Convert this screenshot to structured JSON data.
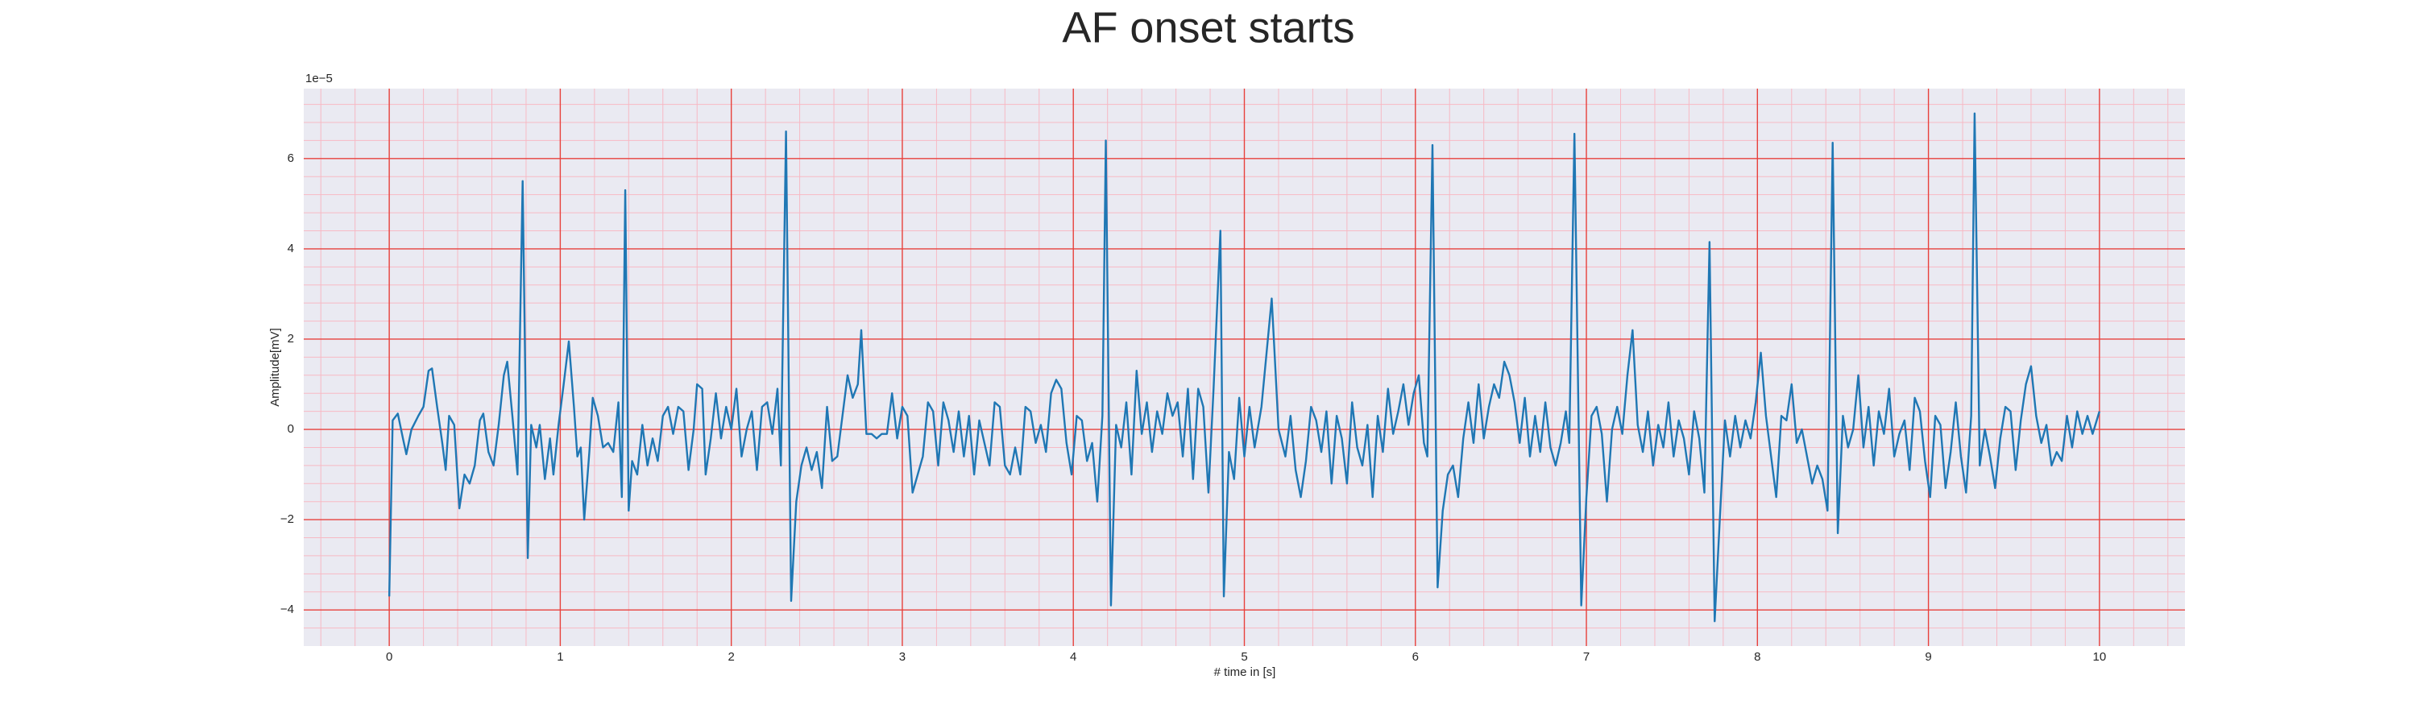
{
  "chart_data": {
    "type": "line",
    "title": "AF onset starts",
    "xlabel": "# time in [s]",
    "ylabel": "Amplitude[mV]",
    "offset_text": "1e−5",
    "x": [
      0,
      0.02,
      0.05,
      0.08,
      0.1,
      0.13,
      0.17,
      0.2,
      0.23,
      0.25,
      0.28,
      0.31,
      0.33,
      0.35,
      0.38,
      0.41,
      0.44,
      0.47,
      0.5,
      0.53,
      0.55,
      0.58,
      0.61,
      0.64,
      0.67,
      0.69,
      0.72,
      0.75,
      0.78,
      0.81,
      0.83,
      0.86,
      0.88,
      0.91,
      0.94,
      0.96,
      0.99,
      1.02,
      1.05,
      1.08,
      1.1,
      1.12,
      1.14,
      1.17,
      1.19,
      1.22,
      1.25,
      1.28,
      1.31,
      1.34,
      1.36,
      1.38,
      1.4,
      1.42,
      1.45,
      1.48,
      1.51,
      1.54,
      1.57,
      1.6,
      1.63,
      1.66,
      1.69,
      1.72,
      1.75,
      1.78,
      1.8,
      1.83,
      1.85,
      1.88,
      1.91,
      1.94,
      1.97,
      2.0,
      2.03,
      2.06,
      2.09,
      2.12,
      2.15,
      2.18,
      2.21,
      2.24,
      2.27,
      2.29,
      2.32,
      2.35,
      2.38,
      2.41,
      2.44,
      2.47,
      2.5,
      2.53,
      2.56,
      2.59,
      2.62,
      2.65,
      2.68,
      2.71,
      2.74,
      2.76,
      2.79,
      2.82,
      2.85,
      2.88,
      2.91,
      2.94,
      2.97,
      3.0,
      3.03,
      3.06,
      3.09,
      3.12,
      3.15,
      3.18,
      3.21,
      3.24,
      3.27,
      3.3,
      3.33,
      3.36,
      3.39,
      3.42,
      3.45,
      3.48,
      3.51,
      3.54,
      3.57,
      3.6,
      3.63,
      3.66,
      3.69,
      3.72,
      3.75,
      3.78,
      3.81,
      3.84,
      3.87,
      3.9,
      3.93,
      3.96,
      3.99,
      4.02,
      4.05,
      4.08,
      4.11,
      4.14,
      4.17,
      4.19,
      4.22,
      4.25,
      4.28,
      4.31,
      4.34,
      4.37,
      4.4,
      4.43,
      4.46,
      4.49,
      4.52,
      4.55,
      4.58,
      4.61,
      4.64,
      4.67,
      4.7,
      4.73,
      4.76,
      4.79,
      4.82,
      4.86,
      4.88,
      4.91,
      4.94,
      4.97,
      5.0,
      5.03,
      5.06,
      5.1,
      5.16,
      5.2,
      5.24,
      5.27,
      5.3,
      5.33,
      5.36,
      5.39,
      5.42,
      5.45,
      5.48,
      5.51,
      5.54,
      5.57,
      5.6,
      5.63,
      5.66,
      5.69,
      5.72,
      5.75,
      5.78,
      5.81,
      5.84,
      5.87,
      5.9,
      5.93,
      5.96,
      5.99,
      6.02,
      6.05,
      6.07,
      6.1,
      6.13,
      6.16,
      6.19,
      6.22,
      6.25,
      6.28,
      6.31,
      6.34,
      6.37,
      6.4,
      6.43,
      6.46,
      6.49,
      6.52,
      6.55,
      6.58,
      6.61,
      6.64,
      6.67,
      6.7,
      6.73,
      6.76,
      6.79,
      6.82,
      6.85,
      6.88,
      6.9,
      6.93,
      6.97,
      7.0,
      7.03,
      7.06,
      7.09,
      7.12,
      7.15,
      7.18,
      7.21,
      7.24,
      7.27,
      7.3,
      7.33,
      7.36,
      7.39,
      7.42,
      7.45,
      7.48,
      7.51,
      7.54,
      7.57,
      7.6,
      7.63,
      7.66,
      7.69,
      7.72,
      7.75,
      7.78,
      7.81,
      7.84,
      7.87,
      7.9,
      7.93,
      7.96,
      7.99,
      8.02,
      8.05,
      8.08,
      8.11,
      8.14,
      8.17,
      8.2,
      8.23,
      8.26,
      8.29,
      8.32,
      8.35,
      8.38,
      8.41,
      8.44,
      8.47,
      8.5,
      8.53,
      8.56,
      8.59,
      8.62,
      8.65,
      8.68,
      8.71,
      8.74,
      8.77,
      8.8,
      8.83,
      8.86,
      8.89,
      8.92,
      8.95,
      8.98,
      9.01,
      9.04,
      9.07,
      9.1,
      9.13,
      9.16,
      9.19,
      9.22,
      9.25,
      9.27,
      9.3,
      9.33,
      9.36,
      9.39,
      9.42,
      9.45,
      9.48,
      9.51,
      9.54,
      9.57,
      9.6,
      9.63,
      9.66,
      9.69,
      9.72,
      9.75,
      9.78,
      9.81,
      9.84,
      9.87,
      9.9,
      9.93,
      9.96,
      10.0
    ],
    "series": [
      {
        "name": "Amplitude",
        "color": "#1f77b4",
        "values": [
          -3.7,
          0.2,
          0.35,
          -0.2,
          -0.55,
          0,
          0.3,
          0.5,
          1.3,
          1.35,
          0.5,
          -0.3,
          -0.9,
          0.3,
          0.1,
          -1.75,
          -1.0,
          -1.2,
          -0.8,
          0.2,
          0.35,
          -0.5,
          -0.8,
          0.1,
          1.2,
          1.5,
          0.3,
          -1.0,
          5.5,
          -2.85,
          0.1,
          -0.4,
          0.1,
          -1.1,
          -0.2,
          -1.0,
          0.1,
          1.0,
          1.95,
          0.5,
          -0.6,
          -0.4,
          -2.0,
          -0.5,
          0.7,
          0.3,
          -0.4,
          -0.3,
          -0.5,
          0.6,
          -1.5,
          5.3,
          -1.8,
          -0.7,
          -1.0,
          0.1,
          -0.8,
          -0.2,
          -0.7,
          0.3,
          0.5,
          -0.1,
          0.5,
          0.4,
          -0.9,
          0.0,
          1.0,
          0.9,
          -1.0,
          -0.2,
          0.8,
          -0.2,
          0.5,
          0.0,
          0.9,
          -0.6,
          0.0,
          0.4,
          -0.9,
          0.5,
          0.6,
          -0.1,
          0.9,
          -0.8,
          6.6,
          -3.8,
          -1.6,
          -0.8,
          -0.4,
          -0.9,
          -0.5,
          -1.3,
          0.5,
          -0.7,
          -0.6,
          0.3,
          1.2,
          0.7,
          1.0,
          2.2,
          -0.1,
          -0.1,
          -0.2,
          -0.1,
          -0.1,
          0.8,
          -0.2,
          0.5,
          0.3,
          -1.4,
          -1.0,
          -0.6,
          0.6,
          0.4,
          -0.8,
          0.6,
          0.2,
          -0.5,
          0.4,
          -0.6,
          0.3,
          -1.0,
          0.2,
          -0.3,
          -0.8,
          0.6,
          0.5,
          -0.8,
          -1.0,
          -0.4,
          -1.0,
          0.5,
          0.4,
          -0.3,
          0.1,
          -0.5,
          0.8,
          1.1,
          0.9,
          -0.3,
          -1.0,
          0.3,
          0.2,
          -0.7,
          -0.3,
          -1.6,
          0.3,
          6.4,
          -3.9,
          0.1,
          -0.4,
          0.6,
          -1.0,
          1.3,
          -0.1,
          0.6,
          -0.5,
          0.4,
          -0.1,
          0.8,
          0.3,
          0.6,
          -0.6,
          0.9,
          -1.1,
          0.9,
          0.5,
          -1.4,
          0.9,
          4.4,
          -3.7,
          -0.5,
          -1.1,
          0.7,
          -0.6,
          0.5,
          -0.4,
          0.5,
          2.9,
          0.0,
          -0.6,
          0.3,
          -0.9,
          -1.5,
          -0.7,
          0.5,
          0.2,
          -0.5,
          0.4,
          -1.2,
          0.3,
          -0.2,
          -1.2,
          0.6,
          -0.4,
          -0.8,
          0.1,
          -1.5,
          0.3,
          -0.5,
          0.9,
          -0.1,
          0.4,
          1.0,
          0.1,
          0.8,
          1.2,
          -0.3,
          -0.6,
          6.3,
          -3.5,
          -1.8,
          -1.0,
          -0.8,
          -1.5,
          -0.2,
          0.6,
          -0.3,
          1.0,
          -0.2,
          0.5,
          1.0,
          0.7,
          1.5,
          1.2,
          0.6,
          -0.3,
          0.7,
          -0.6,
          0.3,
          -0.5,
          0.6,
          -0.4,
          -0.8,
          -0.3,
          0.4,
          -0.3,
          6.55,
          -3.9,
          -1.5,
          0.3,
          0.5,
          -0.1,
          -1.6,
          0.0,
          0.5,
          -0.1,
          1.2,
          2.2,
          0.1,
          -0.5,
          0.4,
          -0.8,
          0.1,
          -0.4,
          0.6,
          -0.6,
          0.2,
          -0.2,
          -1.0,
          0.4,
          -0.2,
          -1.4,
          4.15,
          -4.25,
          -2.0,
          0.2,
          -0.6,
          0.3,
          -0.4,
          0.2,
          -0.2,
          0.6,
          1.7,
          0.3,
          -0.6,
          -1.5,
          0.3,
          0.2,
          1.0,
          -0.3,
          0.0,
          -0.6,
          -1.2,
          -0.8,
          -1.1,
          -1.8,
          6.35,
          -2.3,
          0.3,
          -0.4,
          0.0,
          1.2,
          -0.4,
          0.5,
          -0.8,
          0.4,
          -0.1,
          0.9,
          -0.6,
          -0.1,
          0.2,
          -0.9,
          0.7,
          0.4,
          -0.7,
          -1.5,
          0.3,
          0.1,
          -1.3,
          -0.5,
          0.6,
          -0.6,
          -1.4,
          0.3,
          7.0,
          -0.8,
          0.0,
          -0.6,
          -1.3,
          -0.2,
          0.5,
          0.4,
          -0.9,
          0.2,
          1.0,
          1.4,
          0.3,
          -0.3,
          0.1,
          -0.8,
          -0.5,
          -0.7,
          0.3,
          -0.4,
          0.4,
          -0.1,
          0.3,
          -0.1,
          0.4
        ]
      }
    ],
    "xlim": [
      -0.5,
      10.5
    ],
    "xticks": [
      0,
      1,
      2,
      3,
      4,
      5,
      6,
      7,
      8,
      9,
      10
    ],
    "ylim": [
      -4.8,
      7.55
    ],
    "yticks": [
      {
        "value": -4,
        "label": "−4"
      },
      {
        "value": -2,
        "label": "−2"
      },
      0,
      2,
      4,
      6
    ],
    "xminorticks": [
      -0.4,
      -0.2,
      0.2,
      0.4,
      0.6,
      0.8,
      1.2,
      1.4,
      1.6,
      1.8,
      2.2,
      2.4,
      2.6,
      2.8,
      3.2,
      3.4,
      3.6,
      3.8,
      4.2,
      4.4,
      4.6,
      4.8,
      5.2,
      5.4,
      5.6,
      5.8,
      6.2,
      6.4,
      6.6,
      6.8,
      7.2,
      7.4,
      7.6,
      7.8,
      8.2,
      8.4,
      8.6,
      8.8,
      9.2,
      9.4,
      9.6,
      9.8,
      10.2,
      10.4
    ],
    "yminorticks": [
      -4.4,
      -3.6,
      -3.2,
      -2.8,
      -2.4,
      -1.6,
      -1.2,
      -0.8,
      -0.4,
      0.4,
      0.8,
      1.2,
      1.6,
      2.4,
      2.8,
      3.2,
      3.6,
      4.4,
      4.8,
      5.2,
      5.6,
      6.4,
      6.8,
      7.2
    ],
    "grid": true,
    "grid_color": "#e8413c",
    "minor_grid_color": "#f7b9c4",
    "background": "#eaeaf2"
  }
}
